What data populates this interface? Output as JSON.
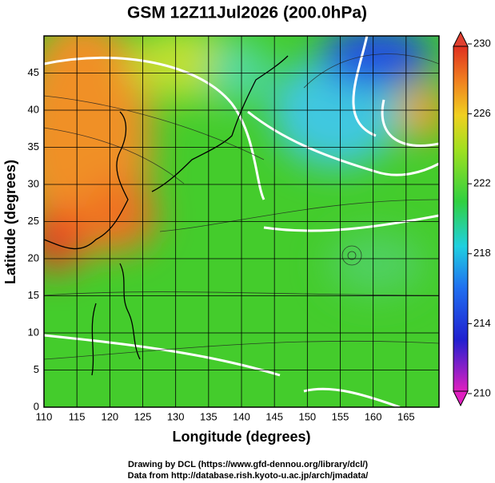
{
  "title": "GSM 12Z11Jul2026 (200.0hPa)",
  "x_axis": {
    "label": "Longitude (degrees)",
    "lim": [
      110,
      170
    ],
    "ticks": [
      110,
      115,
      120,
      125,
      130,
      135,
      140,
      145,
      150,
      155,
      160,
      165
    ]
  },
  "y_axis": {
    "label": "Latitude  (degrees)",
    "lim": [
      0,
      50
    ],
    "ticks": [
      0,
      5,
      10,
      15,
      20,
      25,
      30,
      35,
      40,
      45
    ]
  },
  "colorbar": {
    "lim": [
      210,
      230
    ],
    "ticks": [
      210,
      214,
      218,
      222,
      226,
      230
    ]
  },
  "credits": [
    "Drawing by DCL (https://www.gfd-dennou.org/library/dcl/)",
    "Data from http://database.rish.kyoto-u.ac.jp/arch/jmadata/"
  ]
}
